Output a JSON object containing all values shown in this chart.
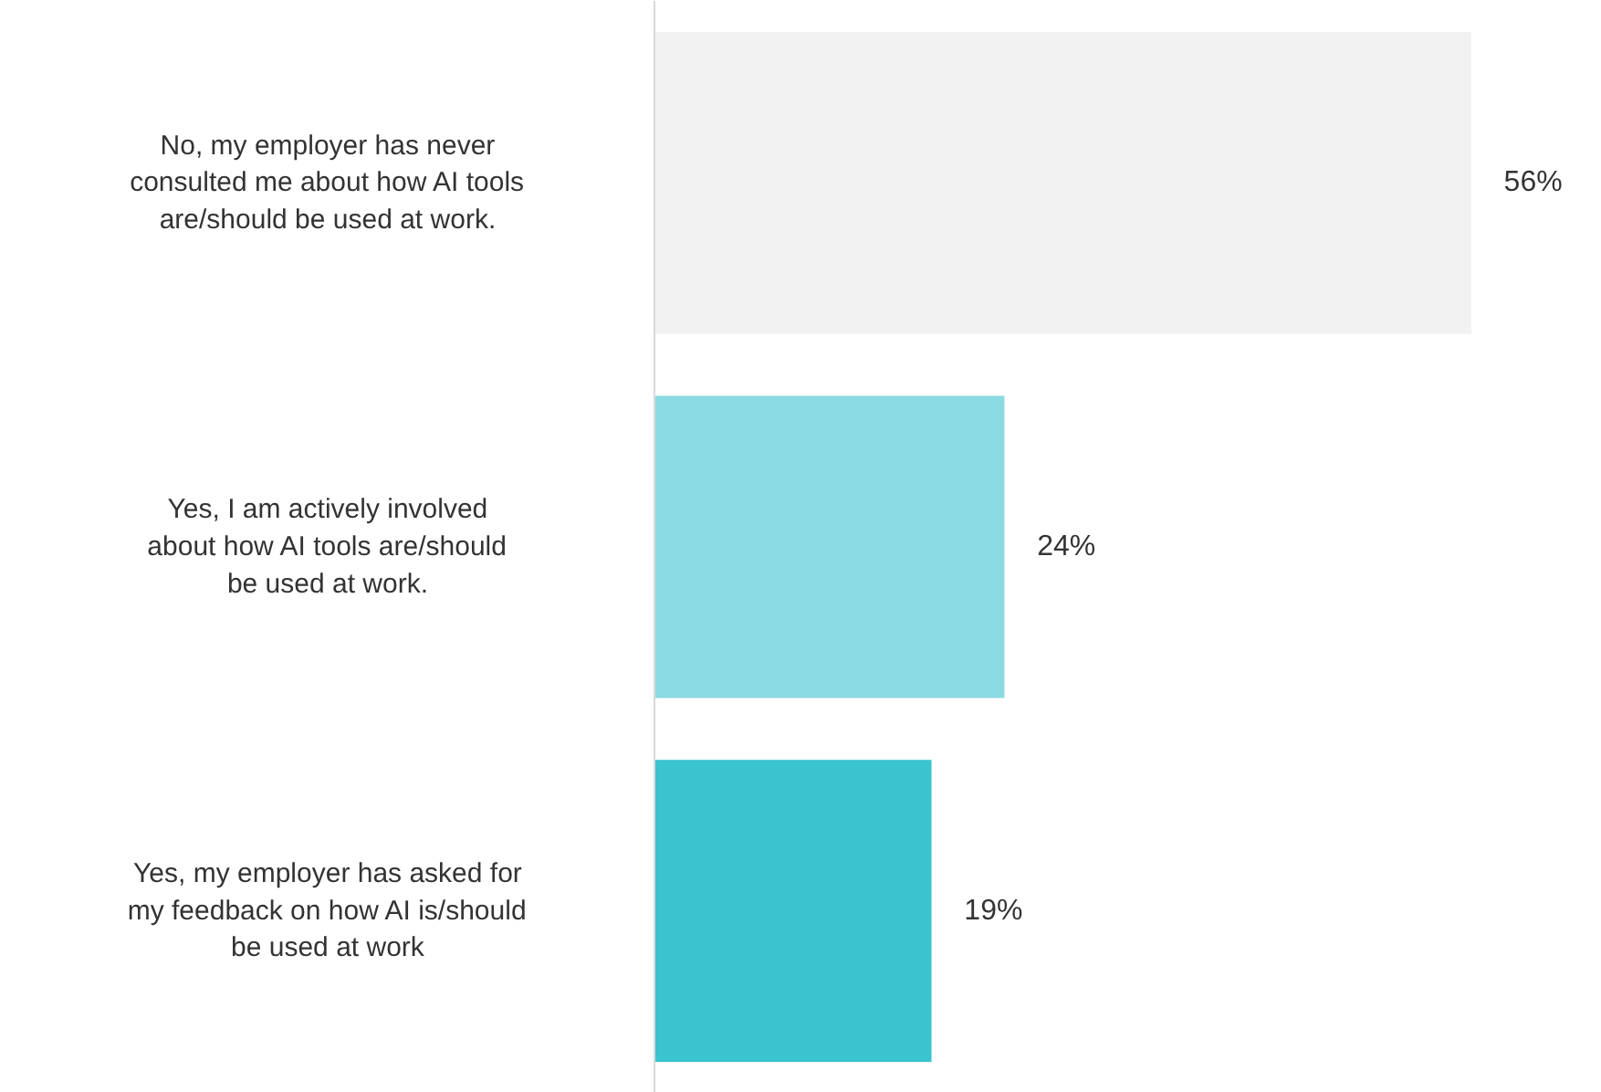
{
  "chart_data": {
    "type": "bar",
    "orientation": "horizontal",
    "categories": [
      "No, my employer has never consulted me about how AI tools are/should be used at work.",
      "Yes, I am actively involved about how AI tools are/should be used at work.",
      "Yes, my employer has asked for my feedback on how AI is/should be used at work"
    ],
    "values": [
      56,
      24,
      19
    ],
    "colors": [
      "#f2f2f2",
      "#8adbe2",
      "#3bc3cf"
    ],
    "value_labels": [
      "56%",
      "24%",
      "19%"
    ],
    "grid": false
  }
}
